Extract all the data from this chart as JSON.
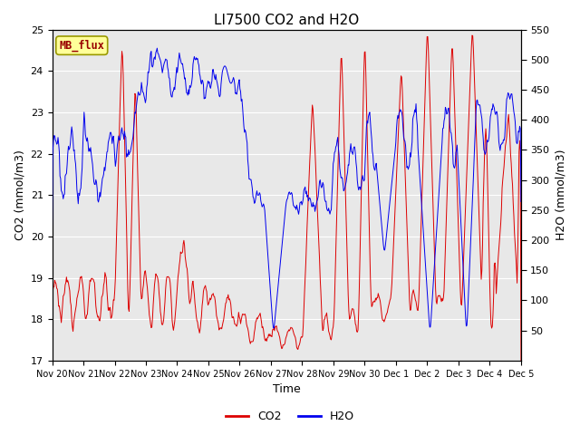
{
  "title": "LI7500 CO2 and H2O",
  "xlabel": "Time",
  "ylabel_left": "CO2 (mmol/m3)",
  "ylabel_right": "H2O (mmol/m3)",
  "co2_ylim": [
    17.0,
    25.0
  ],
  "h2o_ylim": [
    0,
    550
  ],
  "co2_yticks": [
    17.0,
    18.0,
    19.0,
    20.0,
    21.0,
    22.0,
    23.0,
    24.0,
    25.0
  ],
  "h2o_yticks": [
    50,
    100,
    150,
    200,
    250,
    300,
    350,
    400,
    450,
    500,
    550
  ],
  "xtick_labels": [
    "Nov 20",
    "Nov 21",
    "Nov 22",
    "Nov 23",
    "Nov 24",
    "Nov 25",
    "Nov 26",
    "Nov 27",
    "Nov 28",
    "Nov 29",
    "Nov 30",
    "Dec 1",
    "Dec 2",
    "Dec 3",
    "Dec 4",
    "Dec 5"
  ],
  "co2_color": "#dd0000",
  "h2o_color": "#0000ee",
  "bg_color": "#e8e8e8",
  "annotation_text": "MB_flux",
  "annotation_bg": "#ffff99",
  "annotation_border": "#999900",
  "title_fontsize": 11,
  "axis_fontsize": 9,
  "tick_fontsize": 8,
  "legend_fontsize": 9
}
